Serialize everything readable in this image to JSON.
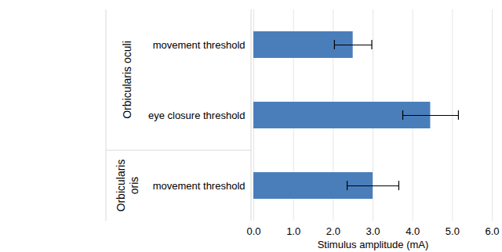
{
  "chart_data": {
    "type": "bar",
    "orientation": "horizontal",
    "categories": [
      "movement threshold",
      "eye closure threshold",
      "movement threshold"
    ],
    "groups": [
      "Orbicularis oculi",
      "Orbicularis oculi",
      "Orbicularis oris"
    ],
    "values": [
      2.5,
      4.45,
      3.0
    ],
    "errors": [
      0.47,
      0.7,
      0.65
    ],
    "color": "#4a7ebb",
    "x_label": "Stimulus amplitude (mA)",
    "xlim": [
      0,
      6
    ],
    "xticks": [
      0,
      1,
      2,
      3,
      4,
      5,
      6
    ],
    "grid": true
  }
}
